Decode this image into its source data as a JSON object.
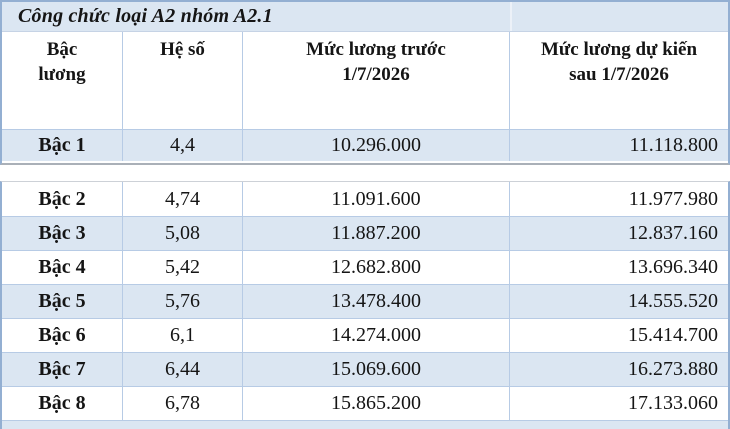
{
  "page": {
    "language": "vi",
    "description_visible": false
  },
  "table": {
    "title": "Công chức loại A2 nhóm A2.1",
    "header": {
      "col1": {
        "line1": "Bậc",
        "line2": "lương"
      },
      "col2": {
        "line1": "Hệ số",
        "line2": ""
      },
      "col3": {
        "line1": "Mức lương trước",
        "line2": "1/7/2026"
      },
      "col4": {
        "line1": "Mức lương dự kiến",
        "line2": "sau 1/7/2026"
      }
    }
  },
  "colors": {
    "row_shade": "#dbe6f2",
    "outer_border": "#93afd2",
    "inner_border": "#b7cbe5",
    "text": "#151515"
  },
  "chart_data": {
    "type": "table",
    "title": "Công chức loại A2 nhóm A2.1",
    "columns": [
      "Bậc lương",
      "Hệ số",
      "Mức lương trước 1/7/2026",
      "Mức lương dự kiến sau 1/7/2026"
    ],
    "rows": [
      {
        "level": "Bậc 1",
        "coefficient": "4,4",
        "salary_before": "10.296.000",
        "salary_after": "11.118.800"
      },
      {
        "level": "Bậc 2",
        "coefficient": "4,74",
        "salary_before": "11.091.600",
        "salary_after": "11.977.980"
      },
      {
        "level": "Bậc 3",
        "coefficient": "5,08",
        "salary_before": "11.887.200",
        "salary_after": "12.837.160"
      },
      {
        "level": "Bậc 4",
        "coefficient": "5,42",
        "salary_before": "12.682.800",
        "salary_after": "13.696.340"
      },
      {
        "level": "Bậc 5",
        "coefficient": "5,76",
        "salary_before": "13.478.400",
        "salary_after": "14.555.520"
      },
      {
        "level": "Bậc 6",
        "coefficient": "6,1",
        "salary_before": "14.274.000",
        "salary_after": "15.414.700"
      },
      {
        "level": "Bậc 7",
        "coefficient": "6,44",
        "salary_before": "15.069.600",
        "salary_after": "16.273.880"
      },
      {
        "level": "Bậc 8",
        "coefficient": "6,78",
        "salary_before": "15.865.200",
        "salary_after": "17.133.060"
      }
    ],
    "notes": "Monthly salary table for civil servants type A2 group A2.1; amounts in VND; first data row shaded, second table rows alternate shading; a ninth shaded row is cut off at the bottom edge."
  }
}
